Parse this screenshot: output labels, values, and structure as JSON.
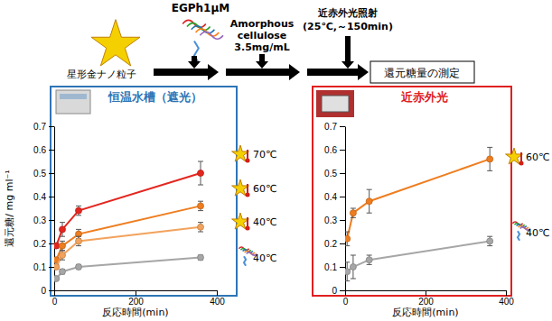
{
  "diagram": {
    "enzyme": "EGPh1μM",
    "nanoparticle": "星形金ナノ粒子",
    "substrate": [
      "Amorphous",
      "cellulose",
      "3.5mg/mL"
    ],
    "irradiation": [
      "近赤外光照射",
      "(25℃,～150min)"
    ],
    "measurement": "還元糖量の測定"
  },
  "chart_data": [
    {
      "type": "line",
      "title": "恒温水槽（遮光）",
      "x_label": "反応時間(min)",
      "y_label": "還元糖/ mg ml⁻¹",
      "x": [
        5,
        20,
        60,
        360
      ],
      "xlim": [
        0,
        400
      ],
      "xticks": [
        0,
        200,
        400
      ],
      "ylim": [
        0,
        0.7
      ],
      "yticks": [
        0,
        0.1,
        0.2,
        0.3,
        0.4,
        0.5,
        0.6,
        0.7
      ],
      "marker": "circle",
      "series": [
        {
          "name": "70℃",
          "color": "#e3261f",
          "values": [
            0.19,
            0.26,
            0.34,
            0.5
          ],
          "errors": [
            0.01,
            0.03,
            0.02,
            0.05
          ]
        },
        {
          "name": "60℃",
          "color": "#ee7d1f",
          "values": [
            0.13,
            0.19,
            0.24,
            0.36
          ],
          "errors": [
            0.01,
            0.02,
            0.02,
            0.02
          ]
        },
        {
          "name": "40℃",
          "color": "#f2a35e",
          "values": [
            0.1,
            0.15,
            0.21,
            0.27
          ],
          "errors": [
            0.01,
            0.02,
            0.02,
            0.02
          ]
        },
        {
          "name": "40℃",
          "color": "#a6a6a6",
          "values": [
            0.05,
            0.08,
            0.1,
            0.14
          ],
          "errors": [
            0.005,
            0.01,
            0.01,
            0.01
          ]
        }
      ]
    },
    {
      "type": "line",
      "title": "近赤外光",
      "x_label": "反応時間(min)",
      "x": [
        5,
        20,
        60,
        360
      ],
      "xlim": [
        0,
        400
      ],
      "xticks": [
        0,
        200,
        400
      ],
      "ylim": [
        0,
        0.7
      ],
      "yticks": [
        0,
        0.1,
        0.2,
        0.3,
        0.4,
        0.5,
        0.6,
        0.7
      ],
      "marker": "circle",
      "series": [
        {
          "name": "60℃",
          "color": "#ee7d1f",
          "values": [
            0.22,
            0.33,
            0.38,
            0.56
          ],
          "errors": [
            0.03,
            0.02,
            0.05,
            0.05
          ]
        },
        {
          "name": "40℃",
          "color": "#a6a6a6",
          "values": [
            0.08,
            0.1,
            0.13,
            0.21
          ],
          "errors": [
            0.04,
            0.05,
            0.02,
            0.02
          ]
        }
      ]
    }
  ]
}
